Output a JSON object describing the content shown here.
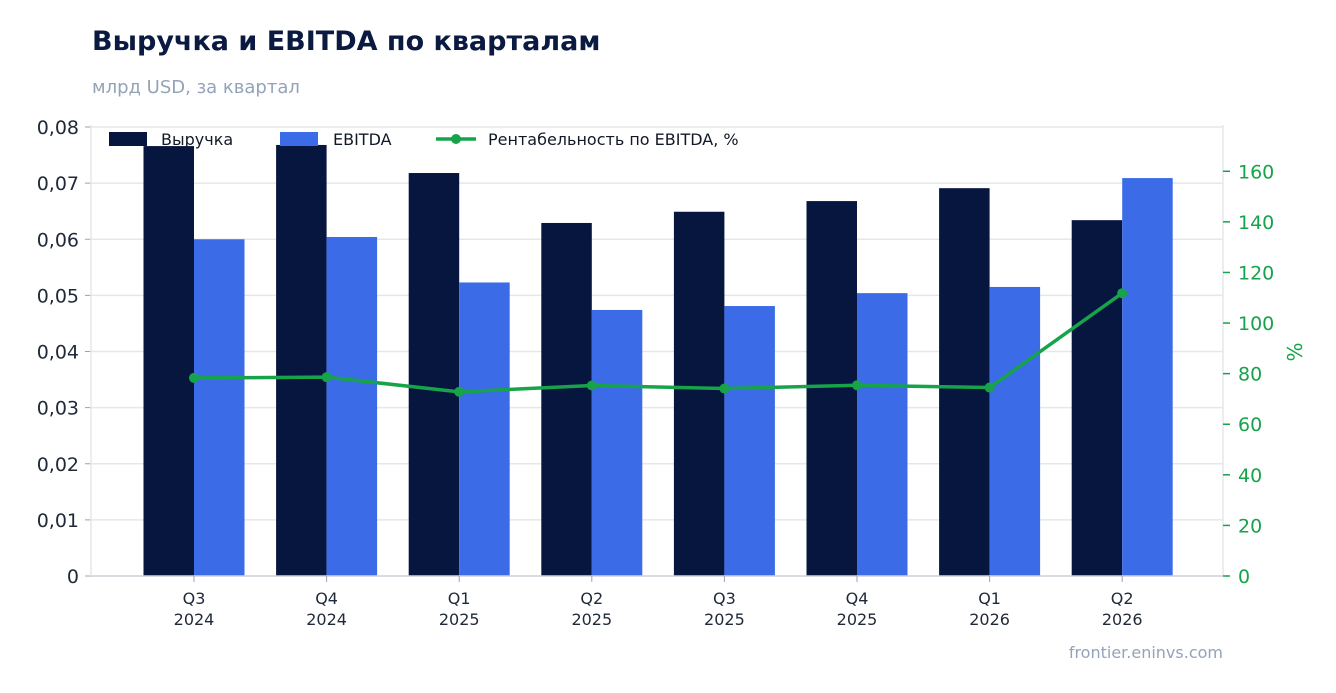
{
  "header": {
    "title": "Выручка и EBITDA по кварталам",
    "subtitle": "млрд USD, за квартал"
  },
  "footer": {
    "source": "frontier.eninvs.com"
  },
  "colors": {
    "revenue": "#06163e",
    "ebitda": "#3b6be6",
    "margin": "#16a34a",
    "grid": "#e5e7eb",
    "axis_left_text": "#1f2937",
    "axis_right_text": "#16a34a"
  },
  "chart_data": {
    "type": "bar",
    "categories": [
      [
        "Q3",
        "2024"
      ],
      [
        "Q4",
        "2024"
      ],
      [
        "Q1",
        "2025"
      ],
      [
        "Q2",
        "2025"
      ],
      [
        "Q3",
        "2025"
      ],
      [
        "Q4",
        "2025"
      ],
      [
        "Q1",
        "2026"
      ],
      [
        "Q2",
        "2026"
      ]
    ],
    "series": [
      {
        "name": "Выручка",
        "kind": "bar",
        "axis": "left",
        "values": [
          0.0766,
          0.0768,
          0.0718,
          0.0629,
          0.0649,
          0.0668,
          0.0691,
          0.0634
        ]
      },
      {
        "name": "EBITDA",
        "kind": "bar",
        "axis": "left",
        "values": [
          0.06,
          0.0604,
          0.0523,
          0.0474,
          0.0481,
          0.0504,
          0.0515,
          0.0709
        ]
      },
      {
        "name": "Рентабельность по EBITDA, %",
        "kind": "line",
        "axis": "right",
        "values": [
          78.3,
          78.6,
          72.8,
          75.3,
          74.1,
          75.4,
          74.5,
          111.8
        ]
      }
    ],
    "y_left": {
      "min": 0,
      "max": 0.08,
      "ticks": [
        0,
        0.01,
        0.02,
        0.03,
        0.04,
        0.05,
        0.06,
        0.07,
        0.08
      ],
      "tick_labels": [
        "0",
        "0,01",
        "0,02",
        "0,03",
        "0,04",
        "0,05",
        "0,06",
        "0,07",
        "0,08"
      ]
    },
    "y_right": {
      "min": 0,
      "max": 177.5,
      "label": "%",
      "ticks": [
        0,
        20,
        40,
        60,
        80,
        100,
        120,
        140,
        160
      ],
      "tick_labels": [
        "0",
        "20",
        "40",
        "60",
        "80",
        "100",
        "120",
        "140",
        "160"
      ]
    },
    "grid": true,
    "legend": {
      "position": "top-left"
    }
  }
}
